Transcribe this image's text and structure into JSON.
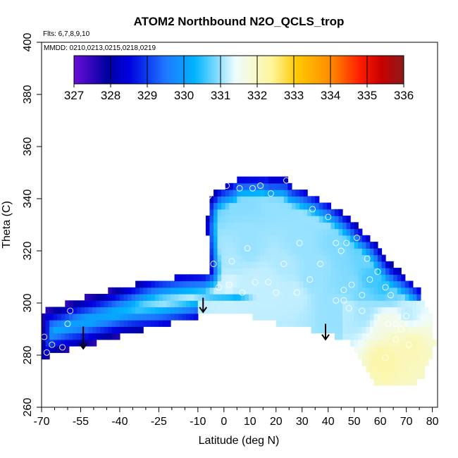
{
  "chart_data": {
    "type": "heatmap",
    "title": "ATOM2 Northbound N2O_QCLS_trop",
    "xlabel": "Latitude (deg N)",
    "ylabel": "Theta (C)",
    "flights_note": "Flts: 6,7,8,9,10",
    "dates_note": "MMDD: 0210,0213,0215,0218,0219",
    "xlim": [
      -70,
      82
    ],
    "ylim": [
      260,
      400
    ],
    "x_ticks": [
      -70,
      -55,
      -40,
      -25,
      -10,
      0,
      10,
      20,
      30,
      40,
      50,
      60,
      70,
      80
    ],
    "x_tick_labels": [
      "-70",
      "-55",
      "-40",
      "-25",
      "-10",
      "0",
      "10",
      "20",
      "30",
      "40",
      "50",
      "60",
      "70",
      "80"
    ],
    "x_minor_ticks": [
      -65,
      -60,
      -50,
      -45,
      -35,
      -30,
      -20,
      -15,
      -5,
      5,
      15,
      25,
      35,
      45,
      55,
      65,
      75
    ],
    "y_ticks": [
      260,
      280,
      300,
      320,
      340,
      360,
      380,
      400
    ],
    "y_tick_labels": [
      "260",
      "280",
      "300",
      "320",
      "340",
      "360",
      "380",
      "400"
    ],
    "colorbar": {
      "min": 327,
      "max": 336,
      "tick_values": [
        327,
        328,
        329,
        330,
        331,
        332,
        333,
        334,
        335,
        336
      ],
      "tick_labels": [
        "327",
        "328",
        "329",
        "330",
        "331",
        "332",
        "333",
        "334",
        "335",
        "336"
      ]
    },
    "colors": {
      "palette": [
        "#6a0dd8",
        "#0000a0",
        "#0000e0",
        "#1e78ff",
        "#00b4ff",
        "#eefcff",
        "#fff59a",
        "#ffc800",
        "#ff8c00",
        "#ff1e00",
        "#c80000",
        "#8b1a1a"
      ],
      "palette_values": [
        327,
        327.9,
        328.5,
        329.5,
        330.3,
        331.4,
        332.4,
        333.1,
        334.0,
        334.8,
        335.4,
        336
      ]
    },
    "arrows_lat": [
      -54,
      -8,
      39
    ],
    "observations": [
      {
        "lat": -69,
        "theta": 287,
        "value": 330.1
      },
      {
        "lat": -66,
        "theta": 284,
        "value": 330.2
      },
      {
        "lat": -62,
        "theta": 283,
        "value": 330.2
      },
      {
        "lat": -60,
        "theta": 292,
        "value": 330.0
      },
      {
        "lat": -59,
        "theta": 297,
        "value": 330.0
      },
      {
        "lat": -68,
        "theta": 281,
        "value": 330.3
      },
      {
        "lat": -6,
        "theta": 341,
        "value": 330.7
      },
      {
        "lat": 1,
        "theta": 345,
        "value": 331.0
      },
      {
        "lat": 6,
        "theta": 344,
        "value": 330.9
      },
      {
        "lat": 11,
        "theta": 344,
        "value": 330.9
      },
      {
        "lat": 14,
        "theta": 345,
        "value": 330.9
      },
      {
        "lat": 18,
        "theta": 342,
        "value": 331.0
      },
      {
        "lat": 24,
        "theta": 347,
        "value": 330.9
      },
      {
        "lat": 34,
        "theta": 336,
        "value": 331.0
      },
      {
        "lat": 40,
        "theta": 333,
        "value": 331.0
      },
      {
        "lat": 43,
        "theta": 323,
        "value": 330.9
      },
      {
        "lat": 47,
        "theta": 323,
        "value": 330.8
      },
      {
        "lat": 51,
        "theta": 325,
        "value": 330.6
      },
      {
        "lat": 9,
        "theta": 321,
        "value": 331.0
      },
      {
        "lat": 3,
        "theta": 316,
        "value": 331.1
      },
      {
        "lat": -4,
        "theta": 315,
        "value": 331.0
      },
      {
        "lat": -2,
        "theta": 306,
        "value": 331.2
      },
      {
        "lat": 2,
        "theta": 307,
        "value": 331.3
      },
      {
        "lat": 7,
        "theta": 304,
        "value": 331.2
      },
      {
        "lat": 12,
        "theta": 308,
        "value": 331.2
      },
      {
        "lat": 17,
        "theta": 308,
        "value": 331.2
      },
      {
        "lat": 20,
        "theta": 304,
        "value": 331.2
      },
      {
        "lat": 28,
        "theta": 304,
        "value": 331.2
      },
      {
        "lat": 23,
        "theta": 315,
        "value": 331.1
      },
      {
        "lat": 29,
        "theta": 323,
        "value": 331.0
      },
      {
        "lat": 33,
        "theta": 309,
        "value": 331.0
      },
      {
        "lat": 37,
        "theta": 315,
        "value": 331.0
      },
      {
        "lat": 43,
        "theta": 301,
        "value": 331.0
      },
      {
        "lat": 46,
        "theta": 305,
        "value": 330.9
      },
      {
        "lat": 49,
        "theta": 307,
        "value": 330.9
      },
      {
        "lat": 53,
        "theta": 303,
        "value": 330.8
      },
      {
        "lat": 53,
        "theta": 297,
        "value": 330.9
      },
      {
        "lat": 48,
        "theta": 298,
        "value": 331.0
      },
      {
        "lat": 55,
        "theta": 317,
        "value": 330.8
      },
      {
        "lat": 59,
        "theta": 312,
        "value": 330.6
      },
      {
        "lat": 56,
        "theta": 309,
        "value": 330.6
      },
      {
        "lat": 62,
        "theta": 306,
        "value": 330.5
      },
      {
        "lat": 64,
        "theta": 303,
        "value": 330.8
      },
      {
        "lat": 66,
        "theta": 292,
        "value": 331.4
      },
      {
        "lat": 63,
        "theta": 292,
        "value": 331.5
      },
      {
        "lat": 68,
        "theta": 290,
        "value": 331.7
      },
      {
        "lat": 62,
        "theta": 279,
        "value": 332.1
      },
      {
        "lat": 66,
        "theta": 286,
        "value": 331.9
      },
      {
        "lat": 70,
        "theta": 295,
        "value": 331.0
      },
      {
        "lat": 71,
        "theta": 284,
        "value": 332.0
      },
      {
        "lat": 46,
        "theta": 301,
        "value": 331.0
      },
      {
        "lat": 45,
        "theta": 320,
        "value": 330.9
      }
    ]
  }
}
